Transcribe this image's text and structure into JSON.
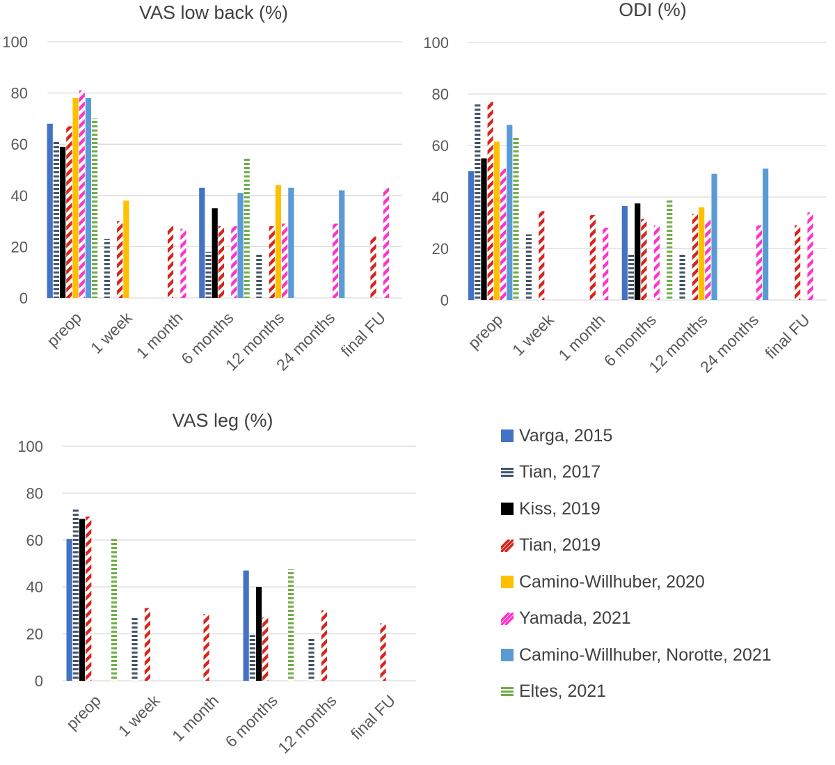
{
  "colors": {
    "grid": "#d9d9d9",
    "axis_text": "#595959",
    "title_text": "#404040"
  },
  "series": [
    {
      "key": "varga",
      "name": "Varga, 2015",
      "color": "#4472c4",
      "pattern": "solid"
    },
    {
      "key": "tian17",
      "name": "Tian, 2017",
      "color": "#44546a",
      "pattern": "hstripe"
    },
    {
      "key": "kiss",
      "name": "Kiss, 2019",
      "color": "#000000",
      "pattern": "solid"
    },
    {
      "key": "tian19",
      "name": "Tian, 2019",
      "color": "#d9241c",
      "pattern": "diag"
    },
    {
      "key": "cw20",
      "name": "Camino-Willhuber, 2020",
      "color": "#ffc000",
      "pattern": "solid"
    },
    {
      "key": "yamada",
      "name": "Yamada, 2021",
      "color": "#ff33cc",
      "pattern": "diag"
    },
    {
      "key": "cwn21",
      "name": "Camino-Willhuber, Norotte, 2021",
      "color": "#5b9bd5",
      "pattern": "solid"
    },
    {
      "key": "eltes",
      "name": "Eltes, 2021",
      "color": "#70ad47",
      "pattern": "hstripe"
    }
  ],
  "chart_data": [
    {
      "type": "bar",
      "title": "VAS low back (%)",
      "categories": [
        "preop",
        "1 week",
        "1 month",
        "6 months",
        "12 months",
        "24 months",
        "final FU"
      ],
      "ylim": [
        0,
        100
      ],
      "yticks": [
        0,
        20,
        40,
        60,
        80,
        100
      ],
      "grid": true,
      "values": {
        "varga": [
          68,
          null,
          null,
          43,
          null,
          null,
          null
        ],
        "tian17": [
          61,
          23,
          null,
          18,
          17,
          null,
          null
        ],
        "kiss": [
          59,
          null,
          null,
          35,
          null,
          null,
          null
        ],
        "tian19": [
          67,
          30,
          28,
          28,
          28,
          null,
          24
        ],
        "cw20": [
          78,
          38,
          null,
          null,
          44,
          null,
          null
        ],
        "yamada": [
          81,
          null,
          27,
          28,
          29,
          29,
          43
        ],
        "cwn21": [
          78,
          null,
          null,
          41,
          43,
          42,
          null
        ],
        "eltes": [
          70,
          null,
          null,
          55,
          null,
          null,
          null
        ]
      }
    },
    {
      "type": "bar",
      "title": "ODI (%)",
      "categories": [
        "preop",
        "1 week",
        "1 month",
        "6 months",
        "12 months",
        "24 months",
        "final FU"
      ],
      "ylim": [
        0,
        100
      ],
      "yticks": [
        0,
        20,
        40,
        60,
        80,
        100
      ],
      "grid": true,
      "values": {
        "varga": [
          50,
          null,
          null,
          36.5,
          null,
          null,
          null
        ],
        "tian17": [
          76,
          25.5,
          null,
          18,
          18,
          null,
          null
        ],
        "kiss": [
          55,
          null,
          null,
          37.5,
          null,
          null,
          null
        ],
        "tian19": [
          77,
          34.5,
          33,
          31.5,
          33.5,
          null,
          29
        ],
        "cw20": [
          61.5,
          null,
          null,
          null,
          36,
          null,
          null
        ],
        "yamada": [
          51,
          null,
          28,
          29,
          31,
          29,
          34
        ],
        "cwn21": [
          68,
          null,
          null,
          null,
          49,
          51,
          null
        ],
        "eltes": [
          63,
          null,
          null,
          39,
          null,
          null,
          null
        ]
      }
    },
    {
      "type": "bar",
      "title": "VAS leg (%)",
      "categories": [
        "preop",
        "1 week",
        "1 month",
        "6 months",
        "12 months",
        "final FU"
      ],
      "ylim": [
        0,
        100
      ],
      "yticks": [
        0,
        20,
        40,
        60,
        80,
        100
      ],
      "grid": true,
      "values": {
        "varga": [
          60.5,
          null,
          null,
          47,
          null,
          null
        ],
        "tian17": [
          73,
          27,
          null,
          19.5,
          18.5,
          null
        ],
        "kiss": [
          69,
          null,
          null,
          40,
          null,
          null
        ],
        "tian19": [
          70,
          31,
          28.5,
          27,
          30,
          24.5
        ],
        "cw20": [
          null,
          null,
          null,
          null,
          null,
          null
        ],
        "yamada": [
          null,
          null,
          null,
          null,
          null,
          null
        ],
        "cwn21": [
          null,
          null,
          null,
          null,
          null,
          null
        ],
        "eltes": [
          60.5,
          null,
          null,
          47.5,
          null,
          null
        ]
      }
    }
  ]
}
